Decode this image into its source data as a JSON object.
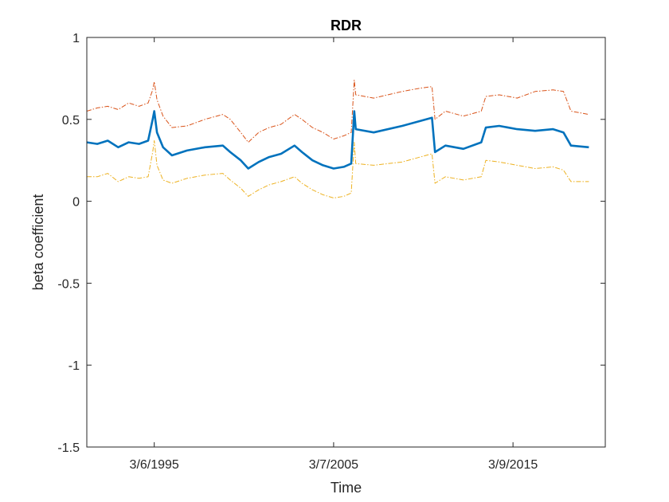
{
  "chart_data": {
    "type": "line",
    "title": "RDR",
    "xlabel": "Time",
    "ylabel": "beta coefficient",
    "ylim": [
      -1.5,
      1
    ],
    "yticks": [
      "1",
      "0.5",
      "0",
      "-0.5",
      "-1",
      "-1.5"
    ],
    "xlim": [
      "1991-06-01",
      "2020-05-01"
    ],
    "xticks": [
      {
        "date": "1995-03-06",
        "label": "3/6/1995"
      },
      {
        "date": "2005-03-07",
        "label": "3/7/2005"
      },
      {
        "date": "2015-03-09",
        "label": "3/9/2015"
      }
    ],
    "grid": false,
    "box": true,
    "series": [
      {
        "role": "upper-bound",
        "color": "#D95319",
        "style": "dash-dot",
        "points": [
          [
            "1991-06-01",
            0.55
          ],
          [
            "1992-01-01",
            0.57
          ],
          [
            "1992-08-01",
            0.58
          ],
          [
            "1993-03-01",
            0.56
          ],
          [
            "1993-10-01",
            0.6
          ],
          [
            "1994-05-01",
            0.58
          ],
          [
            "1994-11-01",
            0.6
          ],
          [
            "1995-02-01",
            0.68
          ],
          [
            "1995-03-06",
            0.73
          ],
          [
            "1995-05-01",
            0.62
          ],
          [
            "1995-09-01",
            0.52
          ],
          [
            "1996-03-01",
            0.45
          ],
          [
            "1997-01-01",
            0.46
          ],
          [
            "1998-01-01",
            0.5
          ],
          [
            "1999-01-01",
            0.53
          ],
          [
            "1999-06-01",
            0.5
          ],
          [
            "2000-01-01",
            0.42
          ],
          [
            "2000-06-01",
            0.36
          ],
          [
            "2001-01-01",
            0.42
          ],
          [
            "2001-08-01",
            0.45
          ],
          [
            "2002-04-01",
            0.47
          ],
          [
            "2003-01-01",
            0.53
          ],
          [
            "2003-06-01",
            0.5
          ],
          [
            "2004-01-01",
            0.45
          ],
          [
            "2004-08-01",
            0.42
          ],
          [
            "2005-03-07",
            0.38
          ],
          [
            "2005-10-01",
            0.4
          ],
          [
            "2006-03-01",
            0.42
          ],
          [
            "2006-05-01",
            0.74
          ],
          [
            "2006-06-01",
            0.65
          ],
          [
            "2007-06-01",
            0.63
          ],
          [
            "2009-01-01",
            0.67
          ],
          [
            "2010-01-01",
            0.69
          ],
          [
            "2010-09-01",
            0.7
          ],
          [
            "2010-11-01",
            0.5
          ],
          [
            "2011-06-01",
            0.55
          ],
          [
            "2012-06-01",
            0.52
          ],
          [
            "2013-06-01",
            0.55
          ],
          [
            "2013-09-01",
            0.64
          ],
          [
            "2014-06-01",
            0.65
          ],
          [
            "2015-06-01",
            0.63
          ],
          [
            "2016-06-01",
            0.67
          ],
          [
            "2017-06-01",
            0.68
          ],
          [
            "2018-01-01",
            0.67
          ],
          [
            "2018-06-01",
            0.55
          ],
          [
            "2019-06-01",
            0.53
          ]
        ]
      },
      {
        "role": "estimate",
        "color": "#0072BD",
        "style": "solid",
        "points": [
          [
            "1991-06-01",
            0.36
          ],
          [
            "1992-01-01",
            0.35
          ],
          [
            "1992-08-01",
            0.37
          ],
          [
            "1993-03-01",
            0.33
          ],
          [
            "1993-10-01",
            0.36
          ],
          [
            "1994-05-01",
            0.35
          ],
          [
            "1994-11-01",
            0.37
          ],
          [
            "1995-02-01",
            0.5
          ],
          [
            "1995-03-06",
            0.55
          ],
          [
            "1995-05-01",
            0.42
          ],
          [
            "1995-09-01",
            0.33
          ],
          [
            "1996-03-01",
            0.28
          ],
          [
            "1997-01-01",
            0.31
          ],
          [
            "1998-01-01",
            0.33
          ],
          [
            "1999-01-01",
            0.34
          ],
          [
            "1999-06-01",
            0.3
          ],
          [
            "2000-01-01",
            0.25
          ],
          [
            "2000-06-01",
            0.2
          ],
          [
            "2001-01-01",
            0.24
          ],
          [
            "2001-08-01",
            0.27
          ],
          [
            "2002-04-01",
            0.29
          ],
          [
            "2003-01-01",
            0.34
          ],
          [
            "2003-06-01",
            0.3
          ],
          [
            "2004-01-01",
            0.25
          ],
          [
            "2004-08-01",
            0.22
          ],
          [
            "2005-03-07",
            0.2
          ],
          [
            "2005-10-01",
            0.21
          ],
          [
            "2006-03-01",
            0.23
          ],
          [
            "2006-05-01",
            0.55
          ],
          [
            "2006-06-01",
            0.44
          ],
          [
            "2007-06-01",
            0.42
          ],
          [
            "2009-01-01",
            0.46
          ],
          [
            "2010-01-01",
            0.49
          ],
          [
            "2010-09-01",
            0.51
          ],
          [
            "2010-11-01",
            0.3
          ],
          [
            "2011-06-01",
            0.34
          ],
          [
            "2012-06-01",
            0.32
          ],
          [
            "2013-06-01",
            0.36
          ],
          [
            "2013-09-01",
            0.45
          ],
          [
            "2014-06-01",
            0.46
          ],
          [
            "2015-06-01",
            0.44
          ],
          [
            "2016-06-01",
            0.43
          ],
          [
            "2017-06-01",
            0.44
          ],
          [
            "2018-01-01",
            0.42
          ],
          [
            "2018-06-01",
            0.34
          ],
          [
            "2019-06-01",
            0.33
          ]
        ]
      },
      {
        "role": "lower-bound",
        "color": "#EDB120",
        "style": "dash-dot",
        "points": [
          [
            "1991-06-01",
            0.15
          ],
          [
            "1992-01-01",
            0.15
          ],
          [
            "1992-08-01",
            0.17
          ],
          [
            "1993-03-01",
            0.12
          ],
          [
            "1993-10-01",
            0.15
          ],
          [
            "1994-05-01",
            0.14
          ],
          [
            "1994-11-01",
            0.15
          ],
          [
            "1995-02-01",
            0.3
          ],
          [
            "1995-03-06",
            0.37
          ],
          [
            "1995-05-01",
            0.22
          ],
          [
            "1995-09-01",
            0.13
          ],
          [
            "1996-03-01",
            0.11
          ],
          [
            "1997-01-01",
            0.14
          ],
          [
            "1998-01-01",
            0.16
          ],
          [
            "1999-01-01",
            0.17
          ],
          [
            "1999-06-01",
            0.13
          ],
          [
            "2000-01-01",
            0.08
          ],
          [
            "2000-06-01",
            0.03
          ],
          [
            "2001-01-01",
            0.07
          ],
          [
            "2001-08-01",
            0.1
          ],
          [
            "2002-04-01",
            0.12
          ],
          [
            "2003-01-01",
            0.15
          ],
          [
            "2003-06-01",
            0.11
          ],
          [
            "2004-01-01",
            0.07
          ],
          [
            "2004-08-01",
            0.04
          ],
          [
            "2005-03-07",
            0.02
          ],
          [
            "2005-10-01",
            0.03
          ],
          [
            "2006-03-01",
            0.05
          ],
          [
            "2006-05-01",
            0.36
          ],
          [
            "2006-06-01",
            0.23
          ],
          [
            "2007-06-01",
            0.22
          ],
          [
            "2009-01-01",
            0.24
          ],
          [
            "2010-01-01",
            0.27
          ],
          [
            "2010-09-01",
            0.29
          ],
          [
            "2010-11-01",
            0.11
          ],
          [
            "2011-06-01",
            0.15
          ],
          [
            "2012-06-01",
            0.13
          ],
          [
            "2013-06-01",
            0.15
          ],
          [
            "2013-09-01",
            0.25
          ],
          [
            "2014-06-01",
            0.24
          ],
          [
            "2015-06-01",
            0.22
          ],
          [
            "2016-06-01",
            0.2
          ],
          [
            "2017-06-01",
            0.21
          ],
          [
            "2018-01-01",
            0.19
          ],
          [
            "2018-06-01",
            0.12
          ],
          [
            "2019-06-01",
            0.12
          ]
        ]
      }
    ]
  }
}
